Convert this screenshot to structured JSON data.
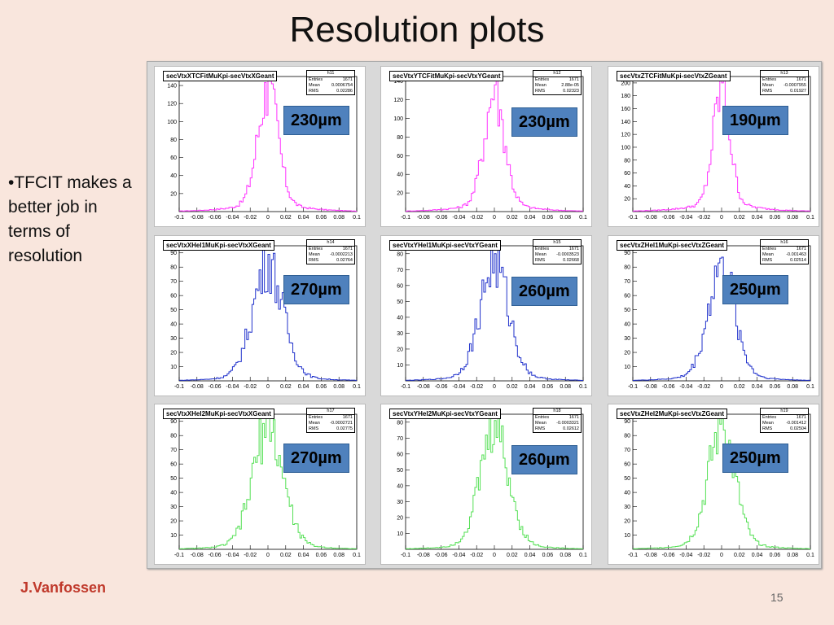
{
  "slide": {
    "title": "Resolution plots",
    "bullet": "•TFCIT makes a better job in terms of resolution",
    "author": "J.Vanfossen",
    "page_number": "15"
  },
  "colors": {
    "row1": "#ff33ff",
    "row2": "#2233cc",
    "row3": "#55e055",
    "label_bg": "#4f81bd"
  },
  "chart_data": [
    {
      "type": "bar",
      "title": "secVtxXTCFitMuKpi-secVtxXGeant",
      "id": "h11",
      "entries": "1671",
      "mean": "0.0006754",
      "rms": "0.02286",
      "resolution_label": "230µm",
      "ylim": [
        0,
        150
      ],
      "yticks": [
        20,
        40,
        60,
        80,
        100,
        120,
        140
      ],
      "xlim": [
        -0.1,
        0.1
      ],
      "xticks": [
        "-0.1",
        "-0.08",
        "-0.06",
        "-0.04",
        "-0.02",
        "0",
        "0.02",
        "0.04",
        "0.06",
        "0.08",
        "0.1"
      ],
      "peak": 145,
      "sigma": 0.0115
    },
    {
      "type": "bar",
      "title": "secVtxYTCFitMuKpi-secVtxYGeant",
      "id": "h12",
      "entries": "1671",
      "mean": "2.88e-05",
      "rms": "0.02323",
      "resolution_label": "230µm",
      "ylim": [
        0,
        145
      ],
      "yticks": [
        20,
        40,
        60,
        80,
        100,
        120,
        140
      ],
      "xlim": [
        -0.1,
        0.1
      ],
      "xticks": [
        "-0.1",
        "-0.08",
        "-0.06",
        "-0.04",
        "-0.02",
        "0",
        "0.02",
        "0.04",
        "0.06",
        "0.08",
        "0.1"
      ],
      "peak": 136,
      "sigma": 0.0115
    },
    {
      "type": "bar",
      "title": "secVtxZTCFitMuKpi-secVtxZGeant",
      "id": "h13",
      "entries": "1671",
      "mean": "-0.0007955",
      "rms": "0.01927",
      "resolution_label": "190µm",
      "ylim": [
        0,
        210
      ],
      "yticks": [
        20,
        40,
        60,
        80,
        100,
        120,
        140,
        160,
        180,
        200
      ],
      "xlim": [
        -0.1,
        0.1
      ],
      "xticks": [
        "-0.1",
        "-0.08",
        "-0.06",
        "-0.04",
        "-0.02",
        "0",
        "0.02",
        "0.04",
        "0.06",
        "0.08",
        "0.1"
      ],
      "peak": 200,
      "sigma": 0.0095
    },
    {
      "type": "bar",
      "title": "secVtxXHel1MuKpi-secVtxXGeant",
      "id": "h14",
      "entries": "1671",
      "mean": "-0.0002213",
      "rms": "0.02764",
      "resolution_label": "270µm",
      "ylim": [
        0,
        95
      ],
      "yticks": [
        10,
        20,
        30,
        40,
        50,
        60,
        70,
        80,
        90
      ],
      "xlim": [
        -0.1,
        0.1
      ],
      "xticks": [
        "-0.1",
        "-0.08",
        "-0.06",
        "-0.04",
        "-0.02",
        "0",
        "0.02",
        "0.04",
        "0.06",
        "0.08",
        "0.1"
      ],
      "peak": 89,
      "sigma": 0.017
    },
    {
      "type": "bar",
      "title": "secVtxYHel1MuKpi-secVtxYGeant",
      "id": "h15",
      "entries": "1671",
      "mean": "-0.0003523",
      "rms": "0.02668",
      "resolution_label": "260µm",
      "ylim": [
        0,
        85
      ],
      "yticks": [
        10,
        20,
        30,
        40,
        50,
        60,
        70,
        80
      ],
      "xlim": [
        -0.1,
        0.1
      ],
      "xticks": [
        "-0.1",
        "-0.08",
        "-0.06",
        "-0.04",
        "-0.02",
        "0",
        "0.02",
        "0.04",
        "0.06",
        "0.08",
        "0.1"
      ],
      "peak": 80,
      "sigma": 0.016
    },
    {
      "type": "bar",
      "title": "secVtxZHel1MuKpi-secVtxZGeant",
      "id": "h16",
      "entries": "1671",
      "mean": "-0.001463",
      "rms": "0.02514",
      "resolution_label": "250µm",
      "ylim": [
        0,
        95
      ],
      "yticks": [
        10,
        20,
        30,
        40,
        50,
        60,
        70,
        80,
        90
      ],
      "xlim": [
        -0.1,
        0.1
      ],
      "xticks": [
        "-0.1",
        "-0.08",
        "-0.06",
        "-0.04",
        "-0.02",
        "0",
        "0.02",
        "0.04",
        "0.06",
        "0.08",
        "0.1"
      ],
      "peak": 87,
      "sigma": 0.015
    },
    {
      "type": "bar",
      "title": "secVtxXHel2MuKpi-secVtxXGeant",
      "id": "h17",
      "entries": "1671",
      "mean": "-0.0002721",
      "rms": "0.02775",
      "resolution_label": "270µm",
      "ylim": [
        0,
        95
      ],
      "yticks": [
        10,
        20,
        30,
        40,
        50,
        60,
        70,
        80,
        90
      ],
      "xlim": [
        -0.1,
        0.1
      ],
      "xticks": [
        "-0.1",
        "-0.08",
        "-0.06",
        "-0.04",
        "-0.02",
        "0",
        "0.02",
        "0.04",
        "0.06",
        "0.08",
        "0.1"
      ],
      "peak": 92,
      "sigma": 0.017
    },
    {
      "type": "bar",
      "title": "secVtxYHel2MuKpi-secVtxYGeant",
      "id": "h18",
      "entries": "1671",
      "mean": "-0.0003321",
      "rms": "0.02612",
      "resolution_label": "260µm",
      "ylim": [
        0,
        85
      ],
      "yticks": [
        10,
        20,
        30,
        40,
        50,
        60,
        70,
        80
      ],
      "xlim": [
        -0.1,
        0.1
      ],
      "xticks": [
        "-0.1",
        "-0.08",
        "-0.06",
        "-0.04",
        "-0.02",
        "0",
        "0.02",
        "0.04",
        "0.06",
        "0.08",
        "0.1"
      ],
      "peak": 81,
      "sigma": 0.016
    },
    {
      "type": "bar",
      "title": "secVtxZHel2MuKpi-secVtxZGeant",
      "id": "h19",
      "entries": "1671",
      "mean": "-0.001412",
      "rms": "0.02504",
      "resolution_label": "250µm",
      "ylim": [
        0,
        95
      ],
      "yticks": [
        10,
        20,
        30,
        40,
        50,
        60,
        70,
        80,
        90
      ],
      "xlim": [
        -0.1,
        0.1
      ],
      "xticks": [
        "-0.1",
        "-0.08",
        "-0.06",
        "-0.04",
        "-0.02",
        "0",
        "0.02",
        "0.04",
        "0.06",
        "0.08",
        "0.1"
      ],
      "peak": 92,
      "sigma": 0.015
    }
  ]
}
